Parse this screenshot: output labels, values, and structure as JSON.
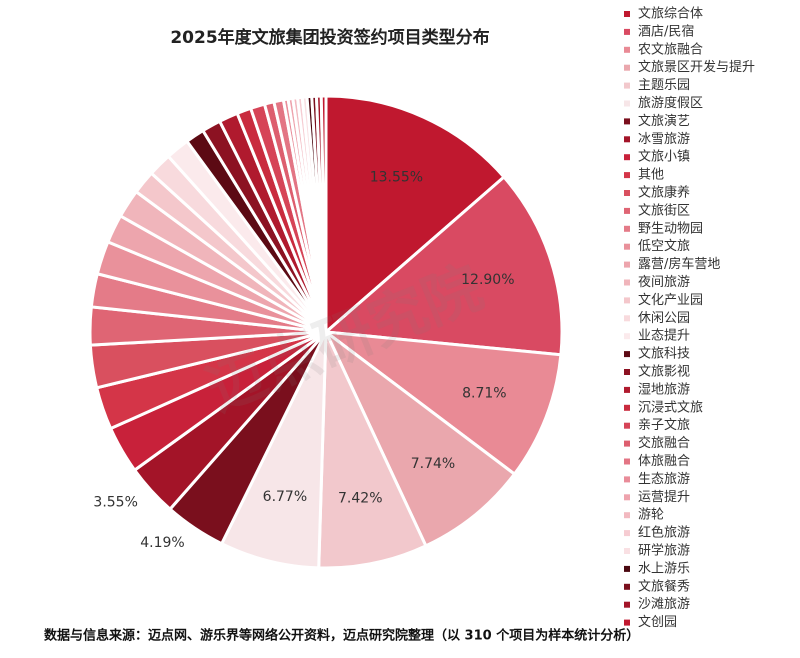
{
  "chart_data": {
    "type": "pie",
    "title": "2025年度文旅集团投资签约项目类型分布",
    "watermark": "迈点研究院",
    "source": "数据与信息来源：迈点网、游乐界等网络公开资料，迈点研究院整理（以 310 个项目为样本统计分析）",
    "categories": [
      "文旅综合体",
      "酒店/民宿",
      "农文旅融合",
      "文旅景区开发与提升",
      "主题乐园",
      "旅游度假区",
      "文旅演艺",
      "冰雪旅游",
      "文旅小镇",
      "其他",
      "文旅康养",
      "文旅街区",
      "野生动物园",
      "低空文旅",
      "露营/房车营地",
      "夜间旅游",
      "文化产业园",
      "休闲公园",
      "业态提升",
      "文旅科技",
      "文旅影视",
      "湿地旅游",
      "沉浸式文旅",
      "亲子文旅",
      "交旅融合",
      "体旅融合",
      "生态旅游",
      "运营提升",
      "游轮",
      "红色旅游",
      "研学旅游",
      "水上游乐",
      "文旅餐秀",
      "沙滩旅游",
      "文创园"
    ],
    "values": [
      13.55,
      12.9,
      8.71,
      7.74,
      7.42,
      6.77,
      4.19,
      3.55,
      3.23,
      2.9,
      2.9,
      2.58,
      2.26,
      2.26,
      1.94,
      1.94,
      1.61,
      1.61,
      1.61,
      1.29,
      1.29,
      1.29,
      0.97,
      0.97,
      0.65,
      0.65,
      0.32,
      0.32,
      0.32,
      0.32,
      0.32,
      0.32,
      0.32,
      0.32,
      0.32
    ],
    "value_labels": [
      "13.55%",
      "12.90%",
      "8.71%",
      "7.74%",
      "7.42%",
      "6.77%",
      "4.19%",
      "3.55%",
      null,
      null,
      null,
      null,
      null,
      null,
      null,
      null,
      null,
      null,
      null,
      null,
      null,
      null,
      null,
      null,
      null,
      null,
      null,
      null,
      null,
      null,
      null,
      null,
      null,
      null,
      null
    ],
    "colors": [
      "#c0182f",
      "#d94a62",
      "#e98a95",
      "#eaa7ad",
      "#f2c8cc",
      "#f7e6e8",
      "#7a0f1d",
      "#a31428",
      "#c8213a",
      "#d43548",
      "#d9505f",
      "#df6574",
      "#e47b88",
      "#e9919b",
      "#eda5ad",
      "#f0b5bb",
      "#f4c7cb",
      "#f8dadd",
      "#fbeaec",
      "#5c0a14",
      "#8c1222",
      "#b01a2e",
      "#c92b3e",
      "#d64457",
      "#dd5e6e",
      "#e37584",
      "#e98c99",
      "#eea3ad",
      "#f2b9c0",
      "#f6ccd2",
      "#f9e0e3",
      "#4a0810",
      "#7a0f1d",
      "#a31428",
      "#c0182f"
    ]
  }
}
